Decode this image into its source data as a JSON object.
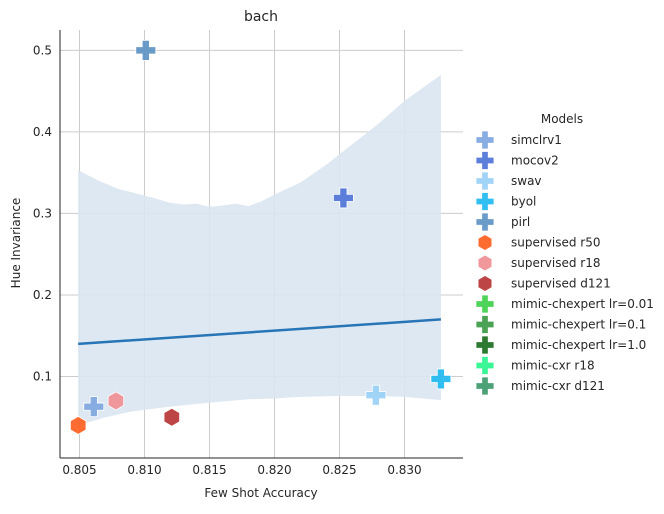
{
  "chart_data": {
    "type": "scatter",
    "title": "bach",
    "xlabel": "Few Shot Accuracy",
    "ylabel": "Hue Invariance",
    "xlim": [
      0.8035,
      0.8345
    ],
    "ylim": [
      0.0,
      0.525
    ],
    "xticks": [
      0.805,
      0.81,
      0.815,
      0.82,
      0.825,
      0.83
    ],
    "xtick_labels": [
      "0.805",
      "0.810",
      "0.815",
      "0.820",
      "0.825",
      "0.830"
    ],
    "yticks": [
      0.1,
      0.2,
      0.3,
      0.4,
      0.5
    ],
    "ytick_labels": [
      "0.1",
      "0.2",
      "0.3",
      "0.4",
      "0.5"
    ],
    "grid": true,
    "legend_title": "Models",
    "legend_placement": "right",
    "series": [
      {
        "name": "simclrv1",
        "marker": "plus",
        "color": "#7ea6e0",
        "points": [
          [
            0.8061,
            0.063
          ]
        ]
      },
      {
        "name": "mocov2",
        "marker": "plus",
        "color": "#4f74d9",
        "points": [
          [
            0.8253,
            0.319
          ]
        ]
      },
      {
        "name": "swav",
        "marker": "plus",
        "color": "#99d0f5",
        "points": [
          [
            0.8278,
            0.077
          ]
        ]
      },
      {
        "name": "byol",
        "marker": "plus",
        "color": "#1fb8f0",
        "points": [
          [
            0.8328,
            0.097
          ]
        ]
      },
      {
        "name": "pirl",
        "marker": "plus",
        "color": "#5d93c4",
        "points": [
          [
            0.8101,
            0.5
          ]
        ]
      },
      {
        "name": "supervised r50",
        "marker": "hexagon",
        "color": "#ff5f1f",
        "points": [
          [
            0.8049,
            0.04
          ]
        ]
      },
      {
        "name": "supervised r18",
        "marker": "hexagon",
        "color": "#f08f94",
        "points": [
          [
            0.8078,
            0.07
          ]
        ]
      },
      {
        "name": "supervised d121",
        "marker": "hexagon",
        "color": "#b83535",
        "points": [
          [
            0.8121,
            0.05
          ]
        ]
      },
      {
        "name": "mimic-chexpert lr=0.01",
        "marker": "plus",
        "color": "#3ecf4a",
        "points": []
      },
      {
        "name": "mimic-chexpert lr=0.1",
        "marker": "plus",
        "color": "#3c9a45",
        "points": []
      },
      {
        "name": "mimic-chexpert lr=1.0",
        "marker": "plus",
        "color": "#1c6e1f",
        "points": []
      },
      {
        "name": "mimic-cxr r18",
        "marker": "plus",
        "color": "#29f58d",
        "points": []
      },
      {
        "name": "mimic-cxr d121",
        "marker": "plus",
        "color": "#3d9a6a",
        "points": []
      }
    ],
    "regression": {
      "color": "#2775b6",
      "band_color": "#dae6f1",
      "line": [
        [
          0.8049,
          0.14
        ],
        [
          0.8328,
          0.17
        ]
      ],
      "band_upper": [
        [
          0.8049,
          0.353
        ],
        [
          0.8065,
          0.34
        ],
        [
          0.808,
          0.33
        ],
        [
          0.81,
          0.322
        ],
        [
          0.812,
          0.313
        ],
        [
          0.813,
          0.311
        ],
        [
          0.814,
          0.312
        ],
        [
          0.815,
          0.308
        ],
        [
          0.8162,
          0.31
        ],
        [
          0.817,
          0.312
        ],
        [
          0.818,
          0.309
        ],
        [
          0.819,
          0.315
        ],
        [
          0.82,
          0.323
        ],
        [
          0.822,
          0.338
        ],
        [
          0.824,
          0.36
        ],
        [
          0.826,
          0.385
        ],
        [
          0.828,
          0.41
        ],
        [
          0.83,
          0.438
        ],
        [
          0.8328,
          0.47
        ]
      ],
      "band_lower": [
        [
          0.8049,
          0.04
        ],
        [
          0.807,
          0.05
        ],
        [
          0.809,
          0.057
        ],
        [
          0.812,
          0.063
        ],
        [
          0.815,
          0.068
        ],
        [
          0.818,
          0.072
        ],
        [
          0.82,
          0.073
        ],
        [
          0.822,
          0.075
        ],
        [
          0.825,
          0.076
        ],
        [
          0.828,
          0.076
        ],
        [
          0.83,
          0.075
        ],
        [
          0.8328,
          0.071
        ]
      ]
    }
  }
}
